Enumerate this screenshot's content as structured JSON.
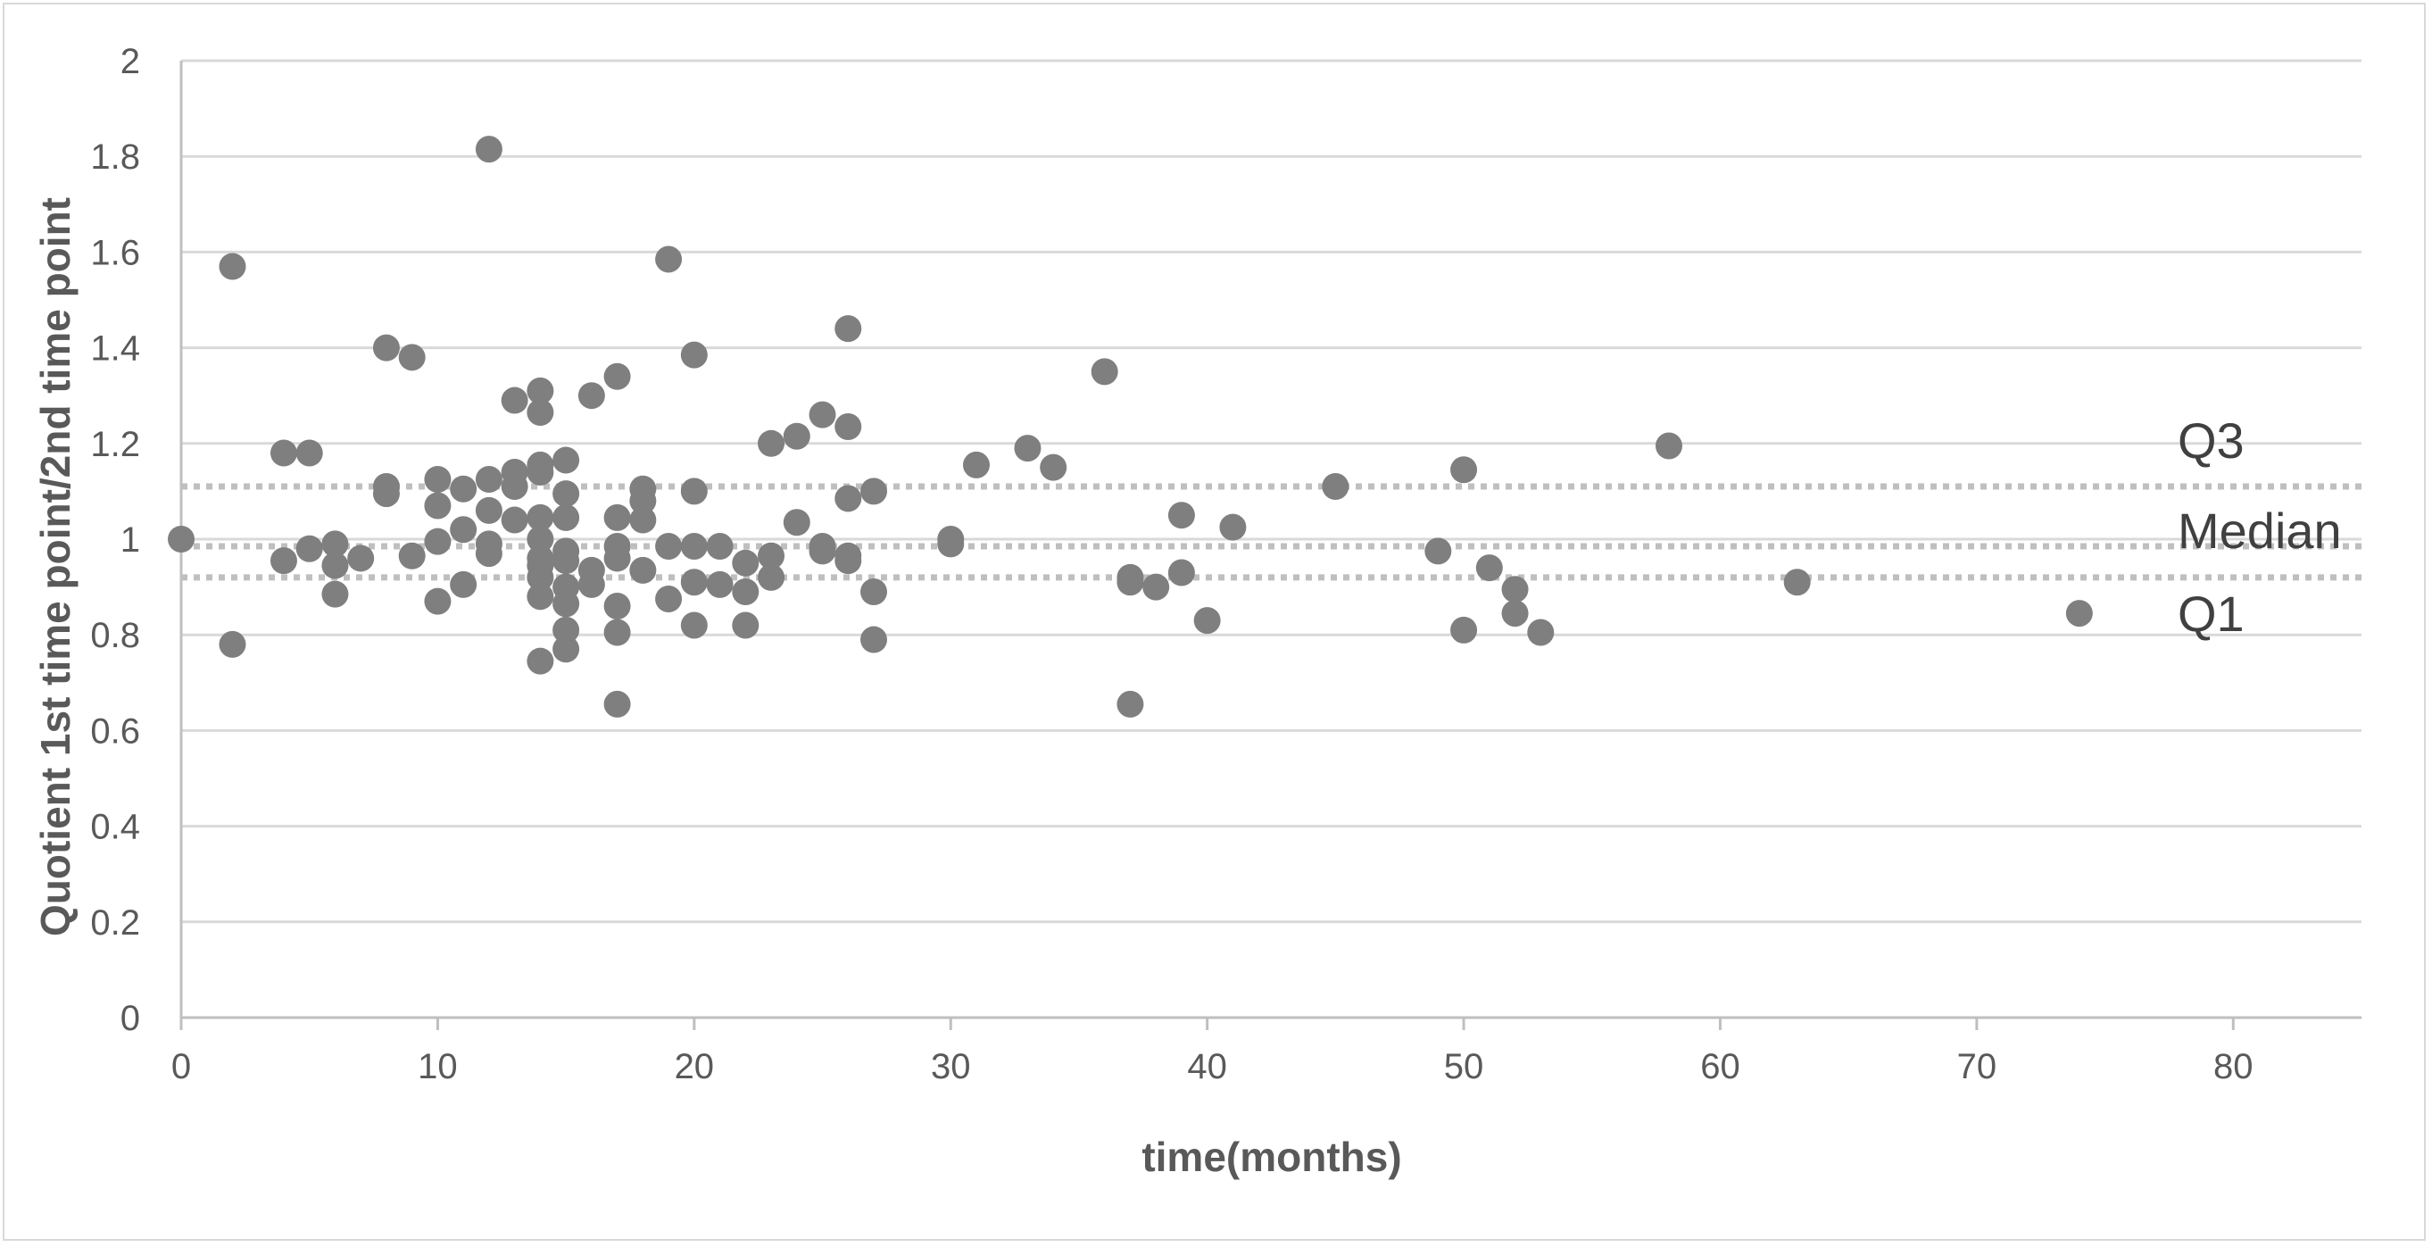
{
  "chart_data": {
    "type": "scatter",
    "title": "",
    "xlabel": "time(months)",
    "ylabel": "Quotient 1st time point/2nd  time point",
    "xlim": [
      0,
      85
    ],
    "ylim": [
      0,
      2
    ],
    "xticks": [
      "0",
      "10",
      "20",
      "30",
      "40",
      "50",
      "60",
      "70",
      "80"
    ],
    "yticks": [
      "0",
      "0.2",
      "0.4",
      "0.6",
      "0.8",
      "1",
      "1.2",
      "1.4",
      "1.6",
      "1.8",
      "2"
    ],
    "grid": "horizontal",
    "colors": {
      "points": "#7f7f7f",
      "grid": "#d9d9d9",
      "reference": "#bfbfbf"
    },
    "reference_lines": [
      {
        "label": "Q3",
        "y": 1.11
      },
      {
        "label": "Median",
        "y": 0.985
      },
      {
        "label": "Q1",
        "y": 0.92
      }
    ],
    "points": [
      [
        0,
        1.0
      ],
      [
        2,
        1.57
      ],
      [
        2,
        0.78
      ],
      [
        4,
        1.18
      ],
      [
        4,
        0.955
      ],
      [
        5,
        1.18
      ],
      [
        5,
        0.98
      ],
      [
        6,
        0.99
      ],
      [
        6,
        0.945
      ],
      [
        6,
        0.885
      ],
      [
        7,
        0.96
      ],
      [
        8,
        1.4
      ],
      [
        8,
        1.11
      ],
      [
        8,
        1.095
      ],
      [
        9,
        1.38
      ],
      [
        9,
        0.965
      ],
      [
        10,
        1.125
      ],
      [
        10,
        1.07
      ],
      [
        10,
        0.995
      ],
      [
        10,
        0.87
      ],
      [
        11,
        1.105
      ],
      [
        11,
        1.02
      ],
      [
        11,
        0.905
      ],
      [
        12,
        1.815
      ],
      [
        12,
        1.125
      ],
      [
        12,
        1.06
      ],
      [
        12,
        0.99
      ],
      [
        12,
        0.97
      ],
      [
        13,
        1.29
      ],
      [
        13,
        1.14
      ],
      [
        13,
        1.11
      ],
      [
        13,
        1.04
      ],
      [
        14,
        1.31
      ],
      [
        14,
        1.265
      ],
      [
        14,
        1.155
      ],
      [
        14,
        1.14
      ],
      [
        14,
        1.045
      ],
      [
        14,
        1.0
      ],
      [
        14,
        0.96
      ],
      [
        14,
        0.945
      ],
      [
        14,
        0.92
      ],
      [
        14,
        0.88
      ],
      [
        14,
        0.745
      ],
      [
        15,
        1.165
      ],
      [
        15,
        1.095
      ],
      [
        15,
        1.045
      ],
      [
        15,
        0.975
      ],
      [
        15,
        0.955
      ],
      [
        15,
        0.9
      ],
      [
        15,
        0.865
      ],
      [
        15,
        0.81
      ],
      [
        15,
        0.77
      ],
      [
        16,
        1.3
      ],
      [
        16,
        0.935
      ],
      [
        16,
        0.905
      ],
      [
        17,
        1.34
      ],
      [
        17,
        1.045
      ],
      [
        17,
        0.985
      ],
      [
        17,
        0.96
      ],
      [
        17,
        0.86
      ],
      [
        17,
        0.805
      ],
      [
        17,
        0.655
      ],
      [
        18,
        1.105
      ],
      [
        18,
        1.08
      ],
      [
        18,
        1.04
      ],
      [
        18,
        0.935
      ],
      [
        19,
        1.585
      ],
      [
        19,
        0.985
      ],
      [
        19,
        0.875
      ],
      [
        20,
        1.385
      ],
      [
        20,
        1.1
      ],
      [
        20,
        0.985
      ],
      [
        20,
        0.91
      ],
      [
        20,
        0.82
      ],
      [
        21,
        0.985
      ],
      [
        21,
        0.905
      ],
      [
        22,
        0.95
      ],
      [
        22,
        0.89
      ],
      [
        22,
        0.82
      ],
      [
        23,
        1.2
      ],
      [
        23,
        0.965
      ],
      [
        23,
        0.92
      ],
      [
        24,
        1.215
      ],
      [
        24,
        1.035
      ],
      [
        25,
        1.26
      ],
      [
        25,
        0.985
      ],
      [
        25,
        0.975
      ],
      [
        26,
        1.44
      ],
      [
        26,
        1.235
      ],
      [
        26,
        1.085
      ],
      [
        26,
        0.965
      ],
      [
        26,
        0.955
      ],
      [
        27,
        1.1
      ],
      [
        27,
        0.89
      ],
      [
        27,
        0.79
      ],
      [
        30,
        1.0
      ],
      [
        30,
        0.99
      ],
      [
        31,
        1.155
      ],
      [
        33,
        1.19
      ],
      [
        34,
        1.15
      ],
      [
        36,
        1.35
      ],
      [
        37,
        0.92
      ],
      [
        37,
        0.91
      ],
      [
        37,
        0.655
      ],
      [
        38,
        0.9
      ],
      [
        39,
        1.05
      ],
      [
        39,
        0.93
      ],
      [
        40,
        0.83
      ],
      [
        41,
        1.025
      ],
      [
        45,
        1.11
      ],
      [
        49,
        0.975
      ],
      [
        50,
        1.145
      ],
      [
        50,
        0.81
      ],
      [
        51,
        0.94
      ],
      [
        52,
        0.895
      ],
      [
        52,
        0.845
      ],
      [
        53,
        0.805
      ],
      [
        58,
        1.195
      ],
      [
        63,
        0.91
      ],
      [
        74,
        0.845
      ]
    ]
  }
}
